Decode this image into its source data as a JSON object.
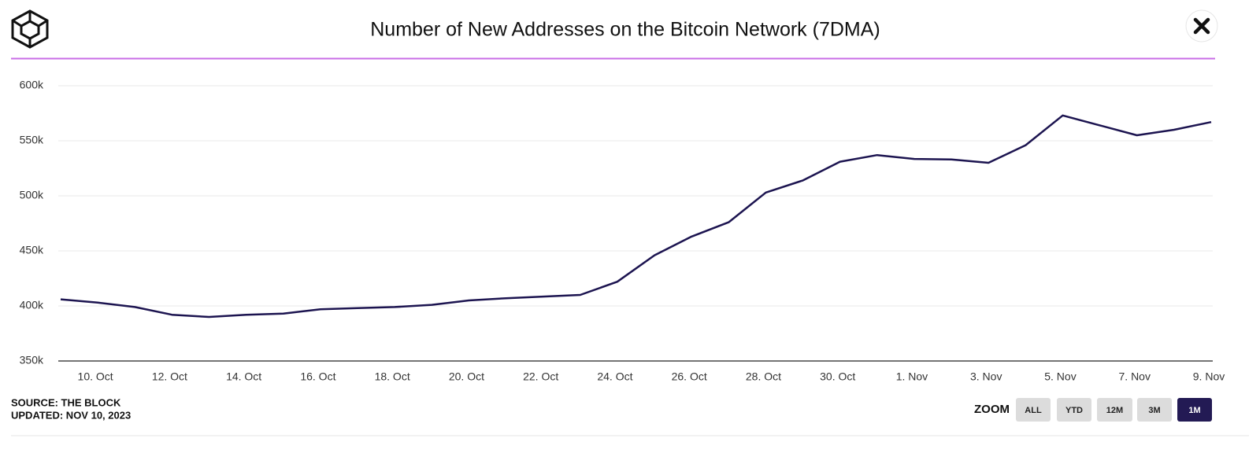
{
  "chart_data": {
    "type": "line",
    "title": "Number of New Addresses on the Bitcoin Network (7DMA)",
    "categories": [
      null,
      "10. Oct",
      null,
      "12. Oct",
      null,
      "14. Oct",
      null,
      "16. Oct",
      null,
      "18. Oct",
      null,
      "20. Oct",
      null,
      "22. Oct",
      null,
      "24. Oct",
      null,
      "26. Oct",
      null,
      "28. Oct",
      null,
      "30. Oct",
      null,
      "1. Nov",
      null,
      "3. Nov",
      null,
      "5. Nov",
      null,
      "7. Nov",
      null,
      "9. Nov"
    ],
    "series": [
      {
        "name": "New Addresses",
        "color": "#1c1450",
        "values": [
          406000,
          403000,
          399000,
          392000,
          390000,
          392000,
          393000,
          397000,
          398000,
          399000,
          401000,
          405000,
          407000,
          408500,
          410000,
          422000,
          446000,
          463000,
          476000,
          503000,
          514000,
          531000,
          537000,
          533500,
          533000,
          530000,
          546000,
          573000,
          564000,
          555000,
          560000,
          567000
        ]
      }
    ],
    "ylim": [
      350000,
      600000
    ],
    "yticks": [
      {
        "value": 350000,
        "label": "350k"
      },
      {
        "value": 400000,
        "label": "400k"
      },
      {
        "value": 450000,
        "label": "450k"
      },
      {
        "value": 500000,
        "label": "500k"
      },
      {
        "value": 550000,
        "label": "550k"
      },
      {
        "value": 600000,
        "label": "600k"
      }
    ],
    "grid": true,
    "source": "SOURCE: THE BLOCK",
    "updated": "UPDATED: NOV 10, 2023",
    "zoom_label": "ZOOM",
    "zoom_buttons": [
      "ALL",
      "YTD",
      "12M",
      "3M",
      "1M"
    ],
    "zoom_active": "1M"
  }
}
